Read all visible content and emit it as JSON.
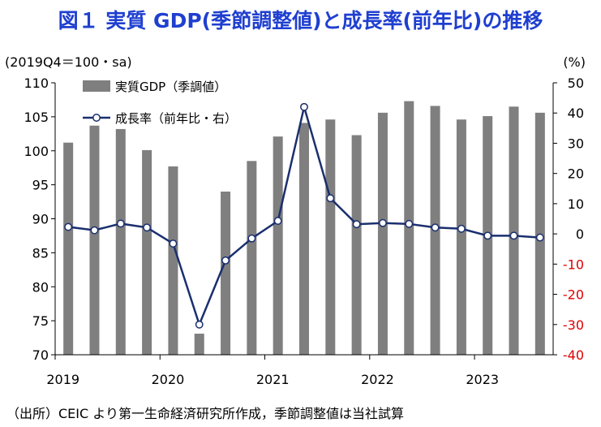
{
  "chart_data": {
    "type": "bar",
    "title": "図１ 実質 GDP(季節調整値)と成長率(前年比)の推移",
    "left_axis_label": "(2019Q4＝100・sa)",
    "right_axis_label": "(%)",
    "left_ylim": [
      70,
      110
    ],
    "left_ticks": [
      70,
      75,
      80,
      85,
      90,
      95,
      100,
      105,
      110
    ],
    "right_ylim": [
      -40,
      50
    ],
    "right_ticks": [
      -40,
      -30,
      -20,
      -10,
      0,
      10,
      20,
      30,
      40,
      50
    ],
    "negative_tick_color": "#e00000",
    "x_tick_labels": [
      "2019",
      "2020",
      "2021",
      "2022",
      "2023"
    ],
    "quarters": [
      "2019Q1",
      "2019Q2",
      "2019Q3",
      "2019Q4",
      "2020Q1",
      "2020Q2",
      "2020Q3",
      "2020Q4",
      "2021Q1",
      "2021Q2",
      "2021Q3",
      "2021Q4",
      "2022Q1",
      "2022Q2",
      "2022Q3",
      "2022Q4",
      "2023Q1",
      "2023Q2",
      "2023Q3"
    ],
    "series": [
      {
        "name": "実質GDP（季調値）",
        "kind": "bar",
        "axis": "left",
        "color": "#7f7f7f",
        "values": [
          101.2,
          103.7,
          103.2,
          100.1,
          97.7,
          73.1,
          94.0,
          98.5,
          102.1,
          104.1,
          104.6,
          102.3,
          105.6,
          107.3,
          106.6,
          104.6,
          105.1,
          106.5,
          105.6
        ]
      },
      {
        "name": "成長率（前年比・右）",
        "kind": "line",
        "axis": "right",
        "color": "#1a2f6e",
        "values": [
          2.3,
          1.2,
          3.4,
          2.1,
          -3.2,
          -30.0,
          -8.8,
          -1.5,
          4.3,
          42.0,
          11.8,
          3.2,
          3.6,
          3.3,
          2.1,
          1.7,
          -0.6,
          -0.6,
          -1.2
        ]
      }
    ],
    "legend_position": "top-left",
    "grid": false
  },
  "source_note": "（出所）CEIC より第一生命経済研究所作成，季節調整値は当社試算"
}
